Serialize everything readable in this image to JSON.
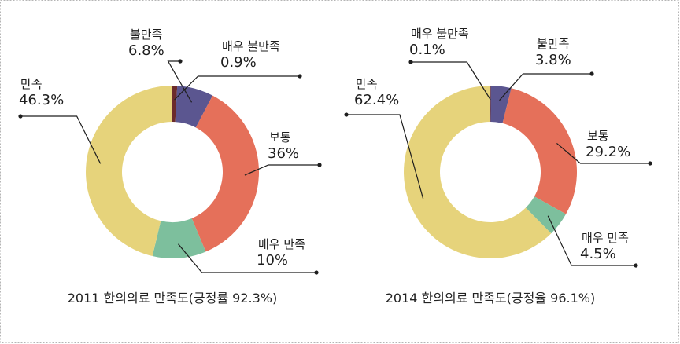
{
  "chart_data": [
    {
      "type": "donut",
      "title": "2011 한의의료 만족도(긍정률 92.3%)",
      "categories": [
        "매우 불만족",
        "불만족",
        "보통",
        "매우 만족",
        "만족"
      ],
      "values": [
        0.9,
        6.8,
        36,
        10,
        46.3
      ],
      "value_labels": [
        "0.9%",
        "6.8%",
        "36%",
        "10%",
        "46.3%"
      ],
      "colors": [
        "#6b2b2b",
        "#5b5690",
        "#e5705a",
        "#7dbf9d",
        "#e6d37b"
      ]
    },
    {
      "type": "donut",
      "title": "2014 한의의료 만족도(긍정율 96.1%)",
      "categories": [
        "매우 불만족",
        "불만족",
        "보통",
        "매우 만족",
        "만족"
      ],
      "values": [
        0.1,
        3.8,
        29.2,
        4.5,
        62.4
      ],
      "value_labels": [
        "0.1%",
        "3.8%",
        "29.2%",
        "4.5%",
        "62.4%"
      ],
      "colors": [
        "#6b2b2b",
        "#5b5690",
        "#e5705a",
        "#7dbf9d",
        "#e6d37b"
      ]
    }
  ]
}
